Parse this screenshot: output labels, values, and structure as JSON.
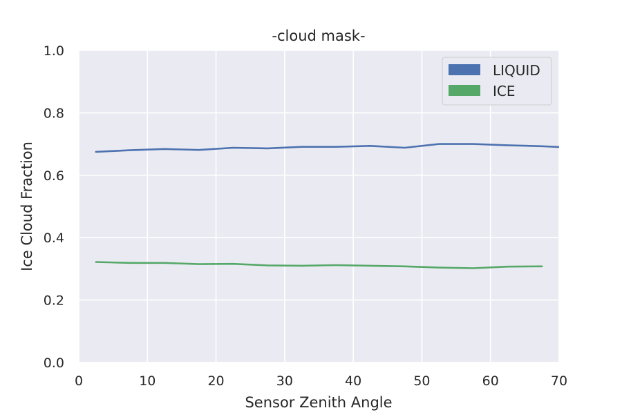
{
  "chart_data": {
    "type": "line",
    "title": "-cloud mask-",
    "xlabel": "Sensor Zenith Angle",
    "ylabel": "Ice Cloud Fraction",
    "xlim": [
      0,
      70
    ],
    "ylim": [
      0,
      1
    ],
    "xticks": [
      "0",
      "10",
      "20",
      "30",
      "40",
      "50",
      "60",
      "70"
    ],
    "yticks": [
      "0.0",
      "0.2",
      "0.4",
      "0.6",
      "0.8",
      "1.0"
    ],
    "grid": true,
    "legend_position": "top-right",
    "series": [
      {
        "name": "LIQUID",
        "color": "#4c72b0",
        "x": [
          2.5,
          7.5,
          12.5,
          17.5,
          22.5,
          27.5,
          32.5,
          37.5,
          42.5,
          47.5,
          52.5,
          57.5,
          62.5,
          67.5,
          72.5
        ],
        "y": [
          0.675,
          0.68,
          0.684,
          0.681,
          0.688,
          0.686,
          0.691,
          0.691,
          0.694,
          0.688,
          0.7,
          0.7,
          0.696,
          0.693,
          0.688
        ]
      },
      {
        "name": "ICE",
        "color": "#55a868",
        "x": [
          2.5,
          7.5,
          12.5,
          17.5,
          22.5,
          27.5,
          32.5,
          37.5,
          42.5,
          47.5,
          52.5,
          57.5,
          62.5,
          67.5
        ],
        "y": [
          0.322,
          0.319,
          0.319,
          0.315,
          0.316,
          0.311,
          0.31,
          0.312,
          0.31,
          0.308,
          0.304,
          0.302,
          0.307,
          0.308
        ]
      }
    ]
  }
}
